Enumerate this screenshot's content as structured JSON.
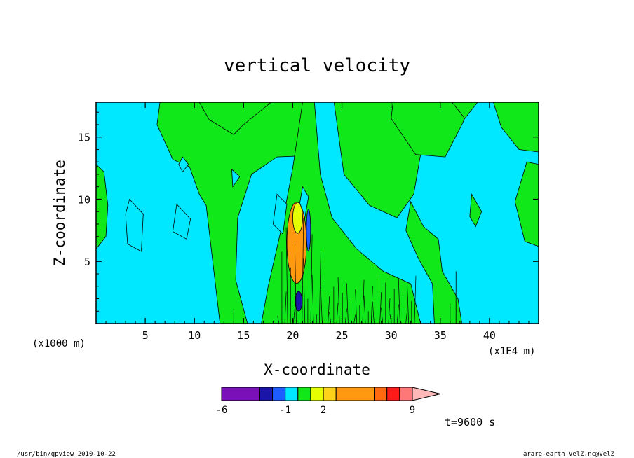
{
  "chart_data": {
    "type": "heatmap",
    "title": "vertical velocity",
    "xlabel": "X-coordinate",
    "ylabel": "Z-coordinate",
    "x_unit_left": "(x1000 m)",
    "x_unit_right": "(x1E4 m)",
    "xlim": [
      0,
      45
    ],
    "ylim": [
      0,
      17.8
    ],
    "xticks": [
      5,
      10,
      15,
      20,
      25,
      30,
      35,
      40
    ],
    "yticks": [
      5,
      10,
      15
    ],
    "colorbar": {
      "colors": [
        "#7a10b8",
        "#1a14a8",
        "#1f5cff",
        "#00e8ff",
        "#10e81a",
        "#e6ff00",
        "#ffd21a",
        "#ff9a10",
        "#ff6a10",
        "#ff1a1a",
        "#ff7878",
        "#ffb8b8"
      ],
      "boundaries": [
        -6,
        -3,
        -2,
        -1,
        0,
        1,
        2,
        3,
        6,
        7,
        8,
        9,
        10
      ],
      "tick_labels": [
        "-6",
        "-1",
        "2",
        "9"
      ]
    },
    "field_colors": {
      "background": "#00e8ff",
      "positive_weak": "#10e81a",
      "positive_mid": "#e6ff00",
      "positive_strong": "#ff9a10",
      "negative": "#1f5cff",
      "negative_strong": "#1a14a8"
    }
  },
  "annotation": {
    "time": "t=9600 s",
    "footer_left": "/usr/bin/gpview  2010-10-22",
    "footer_right": "arare-earth_VelZ.nc@VelZ"
  }
}
